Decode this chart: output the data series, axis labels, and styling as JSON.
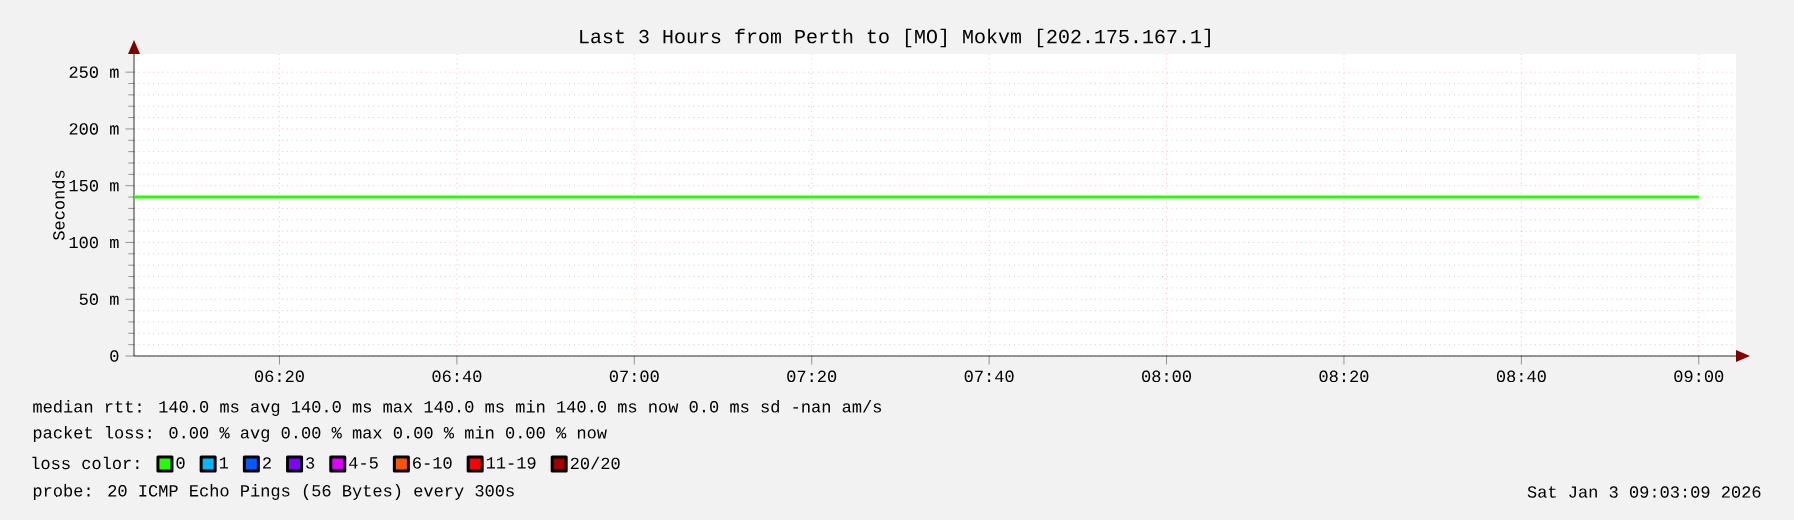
{
  "chart_data": {
    "type": "line",
    "title": "Last 3 Hours from Perth to [MO] Mokvm [202.175.167.1]",
    "ylabel": "Seconds",
    "legend_title": "loss color:",
    "x": [
      6.06,
      9.0
    ],
    "series": [
      {
        "name": "0",
        "color": "#26ff00",
        "values": [
          140,
          140
        ]
      },
      {
        "name": "1",
        "color": "#00b8ff",
        "values": [
          null,
          null
        ]
      },
      {
        "name": "2",
        "color": "#0059ff",
        "values": [
          null,
          null
        ]
      },
      {
        "name": "3",
        "color": "#7e00ff",
        "values": [
          null,
          null
        ]
      },
      {
        "name": "4-5",
        "color": "#dd00ff",
        "values": [
          null,
          null
        ]
      },
      {
        "name": "6-10",
        "color": "#ff5500",
        "values": [
          null,
          null
        ]
      },
      {
        "name": "11-19",
        "color": "#ff0000",
        "values": [
          null,
          null
        ]
      },
      {
        "name": "20/20",
        "color": "#a10000",
        "values": [
          null,
          null
        ]
      }
    ],
    "xlim": [
      6.06,
      9.07
    ],
    "ylim": [
      0,
      266
    ],
    "xticks": [
      {
        "value": 6.3333,
        "label": "06:20"
      },
      {
        "value": 6.6667,
        "label": "06:40"
      },
      {
        "value": 7,
        "label": "07:00"
      },
      {
        "value": 7.3333,
        "label": "07:20"
      },
      {
        "value": 7.6667,
        "label": "07:40"
      },
      {
        "value": 8,
        "label": "08:00"
      },
      {
        "value": 8.3333,
        "label": "08:20"
      },
      {
        "value": 8.6667,
        "label": "08:40"
      },
      {
        "value": 9,
        "label": "09:00"
      }
    ],
    "yticks": [
      0,
      {
        "value": 50,
        "label": "50 m"
      },
      {
        "value": 100,
        "label": "100 m"
      },
      {
        "value": 150,
        "label": "150 m"
      },
      {
        "value": 200,
        "label": "200 m"
      },
      {
        "value": 250,
        "label": "250 m"
      }
    ],
    "grid": true,
    "legend": "bottom",
    "annotations": [
      "median rtt:  140.0 ms avg  140.0 ms max  140.0 ms min  140.0 ms now  0.0 ms sd  -nan  am/s",
      "packet loss: 0.00 % avg  0.00 % max  0.00 % min  0.00 % now",
      "probe:  20 ICMP Echo Pings (56 Bytes) every 300s",
      "Sat Jan  3 09:03:09 2026"
    ]
  }
}
